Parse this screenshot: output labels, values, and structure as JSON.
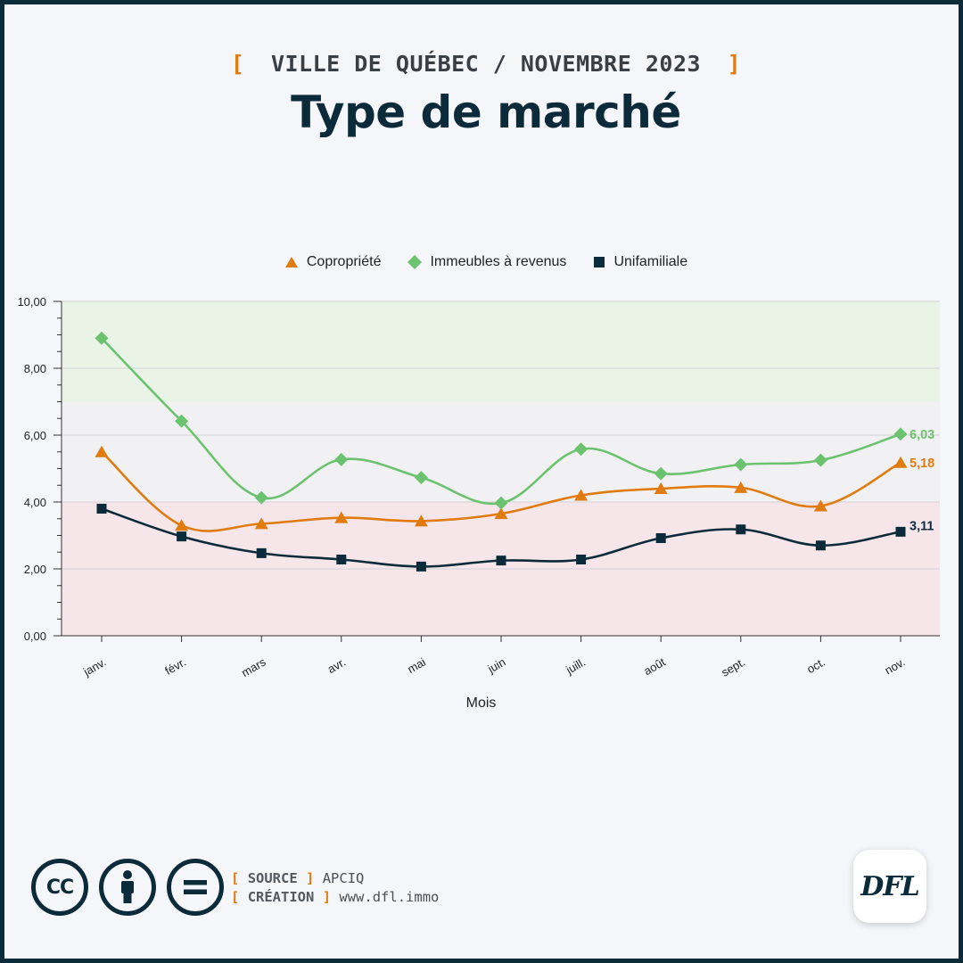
{
  "header": {
    "bracket_open": "[",
    "kicker": "VILLE DE QUÉBEC / NOVEMBRE 2023",
    "bracket_close": "]",
    "title": "Type de marché"
  },
  "colors": {
    "accent": "#e07b10",
    "dark": "#0c2b3a",
    "green": "#6bc26f",
    "band_high": "#e9f3e6",
    "band_mid": "#f1f1f3",
    "band_low": "#f6e6e9"
  },
  "chart_data": {
    "type": "line",
    "categories": [
      "janv.",
      "févr.",
      "mars",
      "avr.",
      "mai",
      "juin",
      "juill.",
      "août",
      "sept.",
      "oct.",
      "nov."
    ],
    "xlabel": "Mois",
    "ylabel": "",
    "ylim": [
      0,
      10
    ],
    "yticks": [
      "0,00",
      "2,00",
      "4,00",
      "6,00",
      "8,00",
      "10,00"
    ],
    "grid": true,
    "legend_position": "top-center",
    "bands": [
      {
        "from": 0,
        "to": 4,
        "color": "#f6e6e9"
      },
      {
        "from": 4,
        "to": 7,
        "color": "#f1f1f3"
      },
      {
        "from": 7,
        "to": 10,
        "color": "#e9f3e6"
      }
    ],
    "series": [
      {
        "name": "Copropriété",
        "marker": "triangle",
        "color": "#e07b10",
        "values": [
          5.5,
          3.3,
          3.35,
          3.53,
          3.43,
          3.65,
          4.2,
          4.4,
          4.43,
          3.88,
          5.18
        ],
        "end_label": "5,18"
      },
      {
        "name": "Immeubles à revenus",
        "marker": "diamond",
        "color": "#6bc26f",
        "values": [
          8.9,
          6.42,
          4.13,
          5.27,
          4.73,
          3.97,
          5.58,
          4.85,
          5.12,
          5.25,
          6.03
        ],
        "end_label": "6,03"
      },
      {
        "name": "Unifamiliale",
        "marker": "square",
        "color": "#0c2b3a",
        "values": [
          3.8,
          2.97,
          2.47,
          2.28,
          2.07,
          2.25,
          2.28,
          2.92,
          3.18,
          2.7,
          3.11
        ],
        "end_label": "3,11"
      }
    ]
  },
  "footer": {
    "icons": [
      "cc-icon",
      "attribution-icon",
      "no-derivatives-icon"
    ],
    "cc_text": "CC",
    "source_key": "SOURCE",
    "source_value": "APCIQ",
    "creation_key": "CRÉATION",
    "creation_value": "www.dfl.immo",
    "logo_text": "DFL"
  }
}
